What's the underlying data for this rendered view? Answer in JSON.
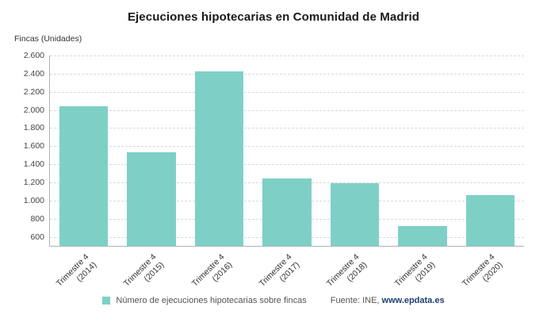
{
  "title": "Ejecuciones hipotecarias en Comunidad de Madrid",
  "chart_data": {
    "type": "bar",
    "title": "Ejecuciones hipotecarias en Comunidad de Madrid",
    "xlabel": "",
    "ylabel": "Fincas (Unidades)",
    "categories": [
      "Trimestre 4 (2014)",
      "Trimestre 4 (2015)",
      "Trimestre 4 (2016)",
      "Trimestre 4 (2017)",
      "Trimestre 4 (2018)",
      "Trimestre 4 (2019)",
      "Trimestre 4 (2020)"
    ],
    "category_lines": [
      [
        "Trimestre 4",
        "(2014)"
      ],
      [
        "Trimestre 4",
        "(2015)"
      ],
      [
        "Trimestre 4",
        "(2016)"
      ],
      [
        "Trimestre 4",
        "(2017)"
      ],
      [
        "Trimestre 4",
        "(2018)"
      ],
      [
        "Trimestre 4",
        "(2019)"
      ],
      [
        "Trimestre 4",
        "(2020)"
      ]
    ],
    "values": [
      2040,
      1530,
      2425,
      1245,
      1195,
      720,
      1060
    ],
    "ylim": [
      500,
      2600
    ],
    "yticks": [
      600,
      800,
      1000,
      1200,
      1400,
      1600,
      1800,
      2000,
      2200,
      2400,
      2600
    ],
    "ytick_labels": [
      "600",
      "800",
      "1.000",
      "1.200",
      "1.400",
      "1.600",
      "1.800",
      "2.000",
      "2.200",
      "2.400",
      "2.600"
    ],
    "grid": true,
    "bar_color": "#7ed0c7",
    "legend": {
      "label": "Número de ejecuciones hipotecarias sobre fincas",
      "swatch_color": "#7ed0c7",
      "position": "bottom"
    },
    "source": {
      "prefix": "Fuente: INE, ",
      "link": "www.epdata.es"
    }
  }
}
